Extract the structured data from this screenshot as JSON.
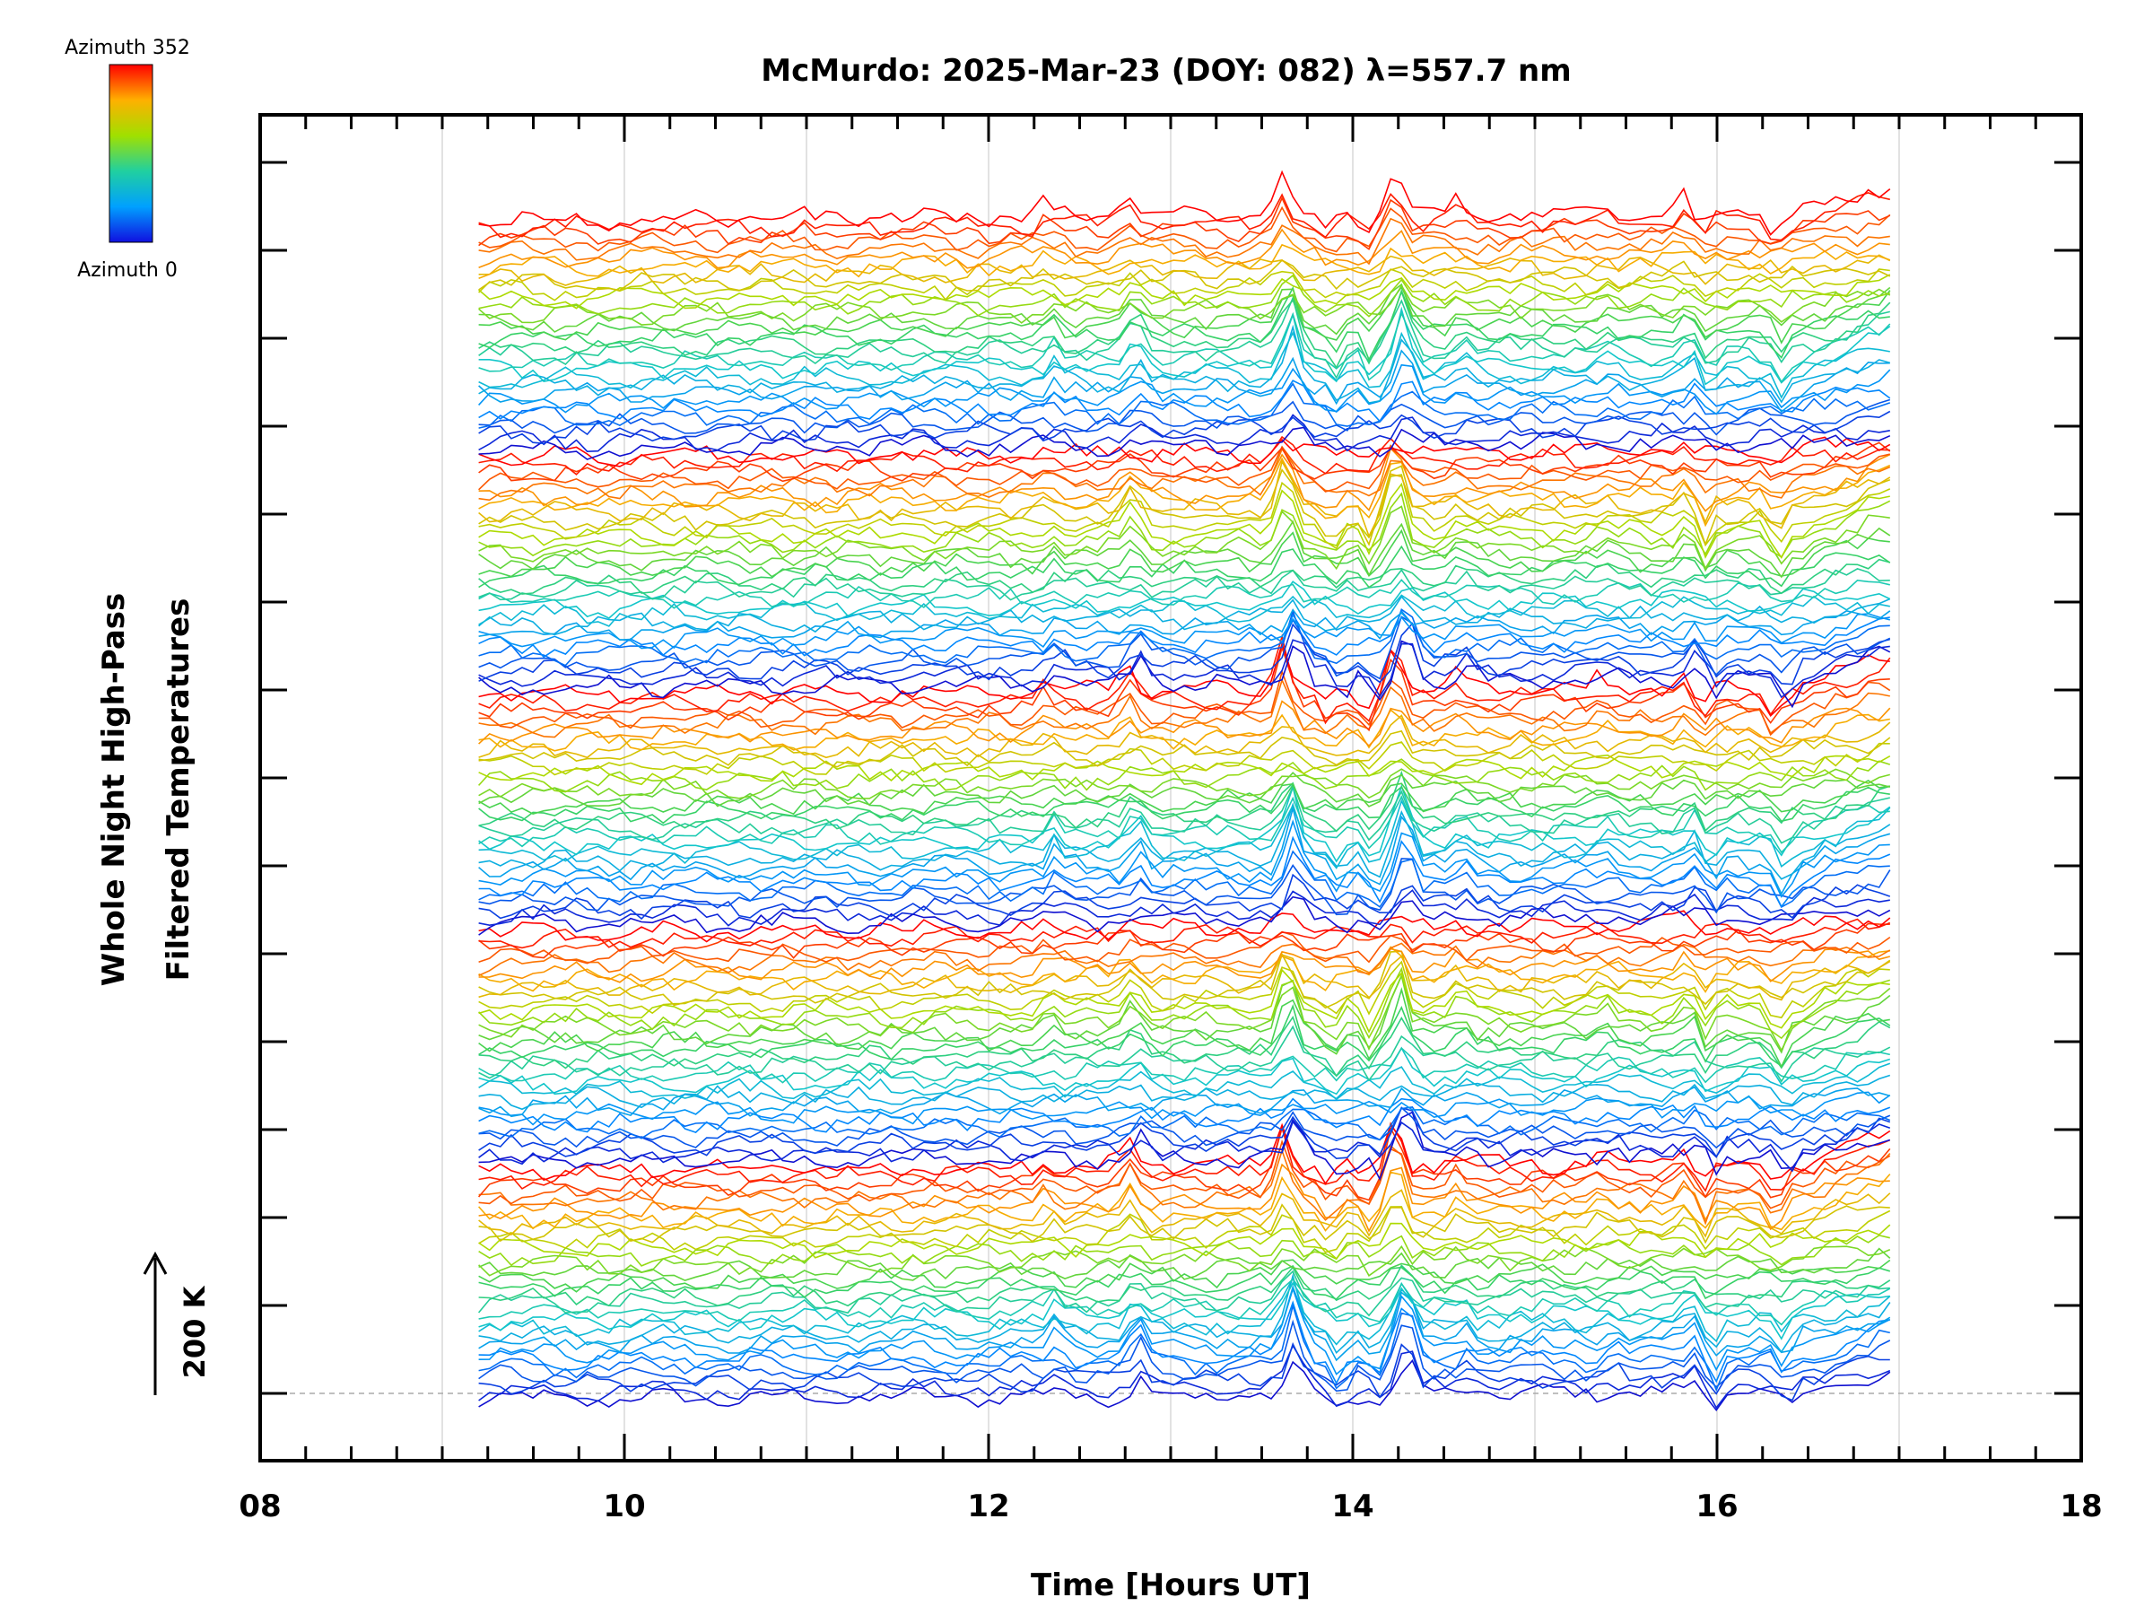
{
  "chart_data": {
    "type": "line",
    "title": "McMurdo: 2025-Mar-23 (DOY: 082) λ=557.7 nm",
    "xlabel": "Time [Hours UT]",
    "ylabel_line1": "Whole Night High-Pass",
    "ylabel_line2": "Filtered Temperatures",
    "x_ticks": [
      "08",
      "10",
      "12",
      "14",
      "16",
      "18"
    ],
    "xlim": [
      8,
      18
    ],
    "data_x_range": [
      9.2,
      16.95
    ],
    "scale_label": "200 K",
    "colorbar": {
      "top_label": "Azimuth 352",
      "bottom_label": "Azimuth 0",
      "range": [
        0,
        352
      ]
    },
    "colors": {
      "min": "#1010d0",
      "mid": "#c8e000",
      "max": "#ff0000"
    },
    "stacked_series_count": 150,
    "azimuths_per_group": 30,
    "common_peaks_hours": [
      12.35,
      12.8,
      13.65,
      14.25,
      14.3
    ],
    "common_dips_hours": [
      13.9,
      14.1,
      15.95,
      16.35
    ]
  }
}
